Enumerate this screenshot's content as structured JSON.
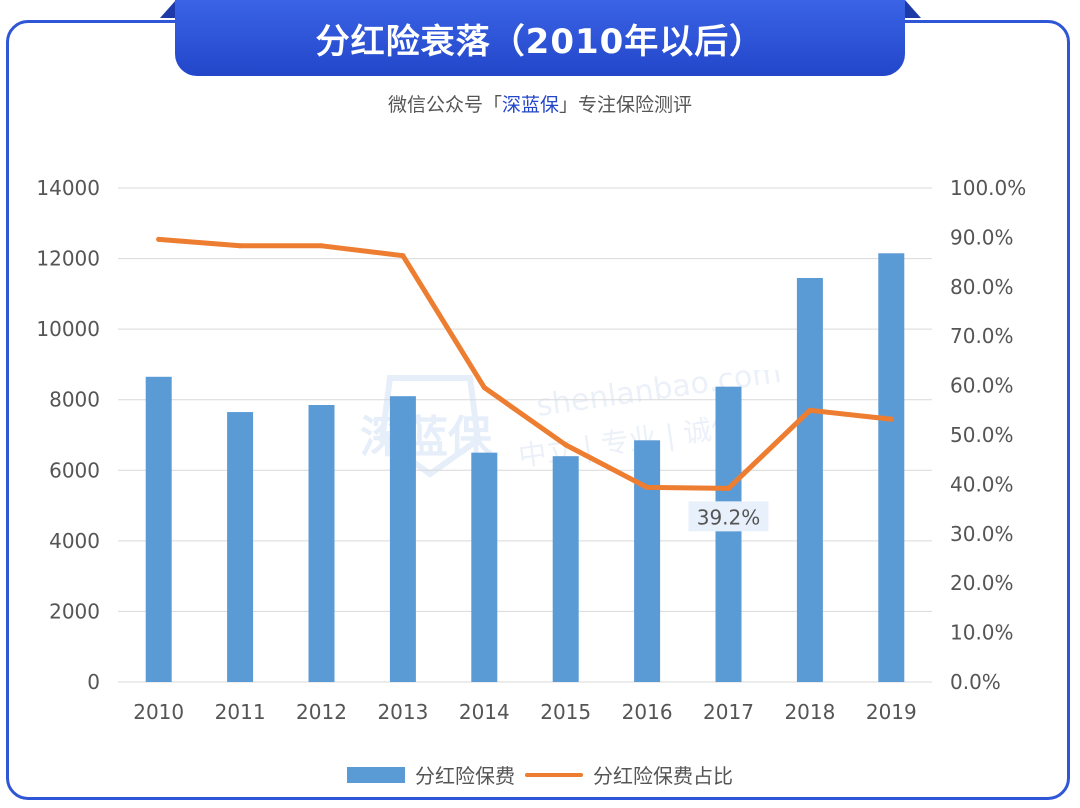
{
  "header": {
    "title": "分红险衰落（2010年以后）",
    "subtitle_prefix": "微信公众号「",
    "subtitle_brand": "深蓝保",
    "subtitle_suffix": "」专注保险测评"
  },
  "watermark": {
    "logo_text": "深蓝保",
    "url_text": "shenlanbao.com",
    "slogan": "中立 | 专业 | 诚信"
  },
  "colors": {
    "frame": "#2f56d6",
    "bar": "#5b9bd5",
    "line": "#ed7d31",
    "label_bg": "#e8f1fb"
  },
  "chart_data": {
    "type": "bar",
    "categories": [
      "2010",
      "2011",
      "2012",
      "2013",
      "2014",
      "2015",
      "2016",
      "2017",
      "2018",
      "2019"
    ],
    "series": [
      {
        "name": "分红险保费",
        "type": "bar",
        "axis": "left",
        "values": [
          8650,
          7650,
          7850,
          8100,
          6500,
          6400,
          6850,
          8370,
          11450,
          12150
        ]
      },
      {
        "name": "分红险保费占比",
        "type": "line",
        "axis": "right",
        "values": [
          89.6,
          88.3,
          88.3,
          86.3,
          59.6,
          48.0,
          39.4,
          39.2,
          55.0,
          53.2
        ]
      }
    ],
    "left_axis": {
      "ylim": [
        0,
        14000
      ],
      "ticks": [
        "0",
        "2000",
        "4000",
        "6000",
        "8000",
        "10000",
        "12000",
        "14000"
      ]
    },
    "right_axis": {
      "ylim": [
        0,
        100
      ],
      "ticks": [
        "0.0%",
        "10.0%",
        "20.0%",
        "30.0%",
        "40.0%",
        "50.0%",
        "60.0%",
        "70.0%",
        "80.0%",
        "90.0%",
        "100.0%"
      ]
    },
    "annotations": [
      {
        "category": "2017",
        "series": "分红险保费占比",
        "text": "39.2%"
      }
    ],
    "grid": true,
    "legend_position": "bottom"
  }
}
